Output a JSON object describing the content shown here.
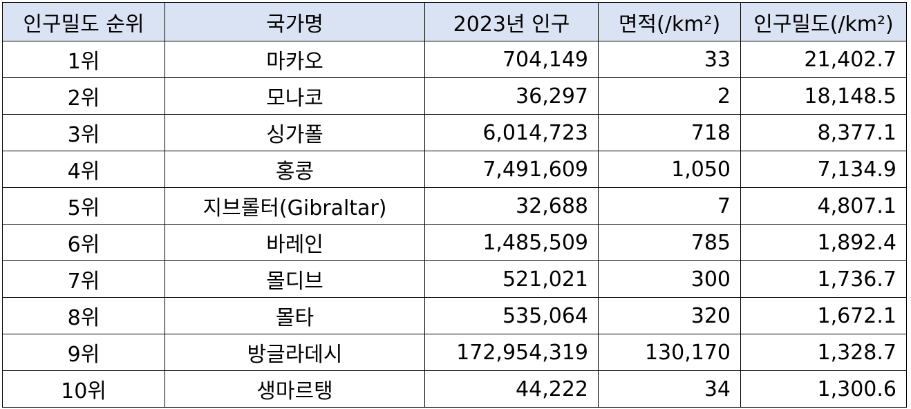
{
  "table": {
    "headers": [
      "인구밀도 순위",
      "국가명",
      "2023년 인구",
      "면적(/km²)",
      "인구밀도(/km²)"
    ],
    "rows": [
      {
        "rank": "1위",
        "country": "마카오",
        "population": "704,149",
        "area": "33",
        "density": "21,402.7"
      },
      {
        "rank": "2위",
        "country": "모나코",
        "population": "36,297",
        "area": "2",
        "density": "18,148.5"
      },
      {
        "rank": "3위",
        "country": "싱가폴",
        "population": "6,014,723",
        "area": "718",
        "density": "8,377.1"
      },
      {
        "rank": "4위",
        "country": "홍콩",
        "population": "7,491,609",
        "area": "1,050",
        "density": "7,134.9"
      },
      {
        "rank": "5위",
        "country": "지브롤터(Gibraltar)",
        "population": "32,688",
        "area": "7",
        "density": "4,807.1"
      },
      {
        "rank": "6위",
        "country": "바레인",
        "population": "1,485,509",
        "area": "785",
        "density": "1,892.4"
      },
      {
        "rank": "7위",
        "country": "몰디브",
        "population": "521,021",
        "area": "300",
        "density": "1,736.7"
      },
      {
        "rank": "8위",
        "country": "몰타",
        "population": "535,064",
        "area": "320",
        "density": "1,672.1"
      },
      {
        "rank": "9위",
        "country": "방글라데시",
        "population": "172,954,319",
        "area": "130,170",
        "density": "1,328.7"
      },
      {
        "rank": "10위",
        "country": "생마르탱",
        "population": "44,222",
        "area": "34",
        "density": "1,300.6"
      }
    ]
  },
  "colors": {
    "header_background": "#dae3f3",
    "border": "#000000"
  }
}
